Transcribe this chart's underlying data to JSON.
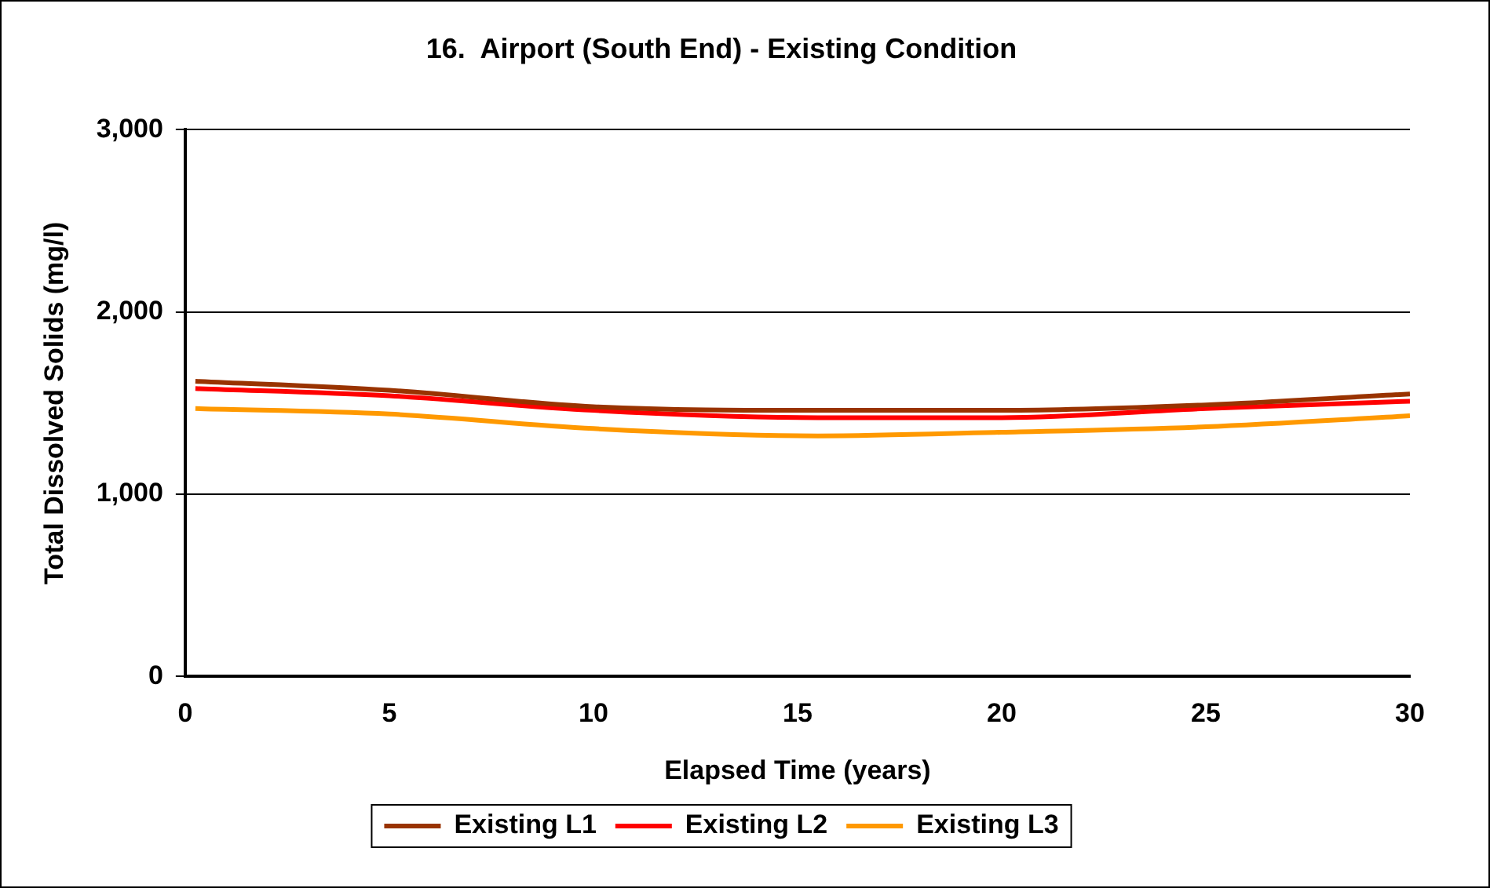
{
  "chart_data": {
    "type": "line",
    "title": "16.  Airport (South End) - Existing Condition",
    "xlabel": "Elapsed Time (years)",
    "ylabel": "Total Dissolved Solids (mg/l)",
    "x": [
      0.25,
      5,
      10,
      15.5,
      20,
      25,
      30
    ],
    "series": [
      {
        "name": "Existing L1",
        "color": "#993300",
        "values": [
          1620,
          1570,
          1480,
          1460,
          1460,
          1490,
          1550
        ]
      },
      {
        "name": "Existing L2",
        "color": "#ff0000",
        "values": [
          1580,
          1540,
          1460,
          1420,
          1420,
          1470,
          1510
        ]
      },
      {
        "name": "Existing L3",
        "color": "#ff9900",
        "values": [
          1470,
          1440,
          1360,
          1320,
          1340,
          1370,
          1430
        ]
      }
    ],
    "xlim": [
      0,
      30
    ],
    "xticks": [
      0,
      5,
      10,
      15,
      20,
      25,
      30
    ],
    "ylim": [
      0,
      3000
    ],
    "yticks": [
      0,
      {
        "value": 1000,
        "label": "1,000"
      },
      {
        "value": 2000,
        "label": "2,000"
      },
      {
        "value": 3000,
        "label": "3,000"
      }
    ],
    "grid": "y",
    "legend": "bottom",
    "marker": "none",
    "line_style": "solid"
  }
}
